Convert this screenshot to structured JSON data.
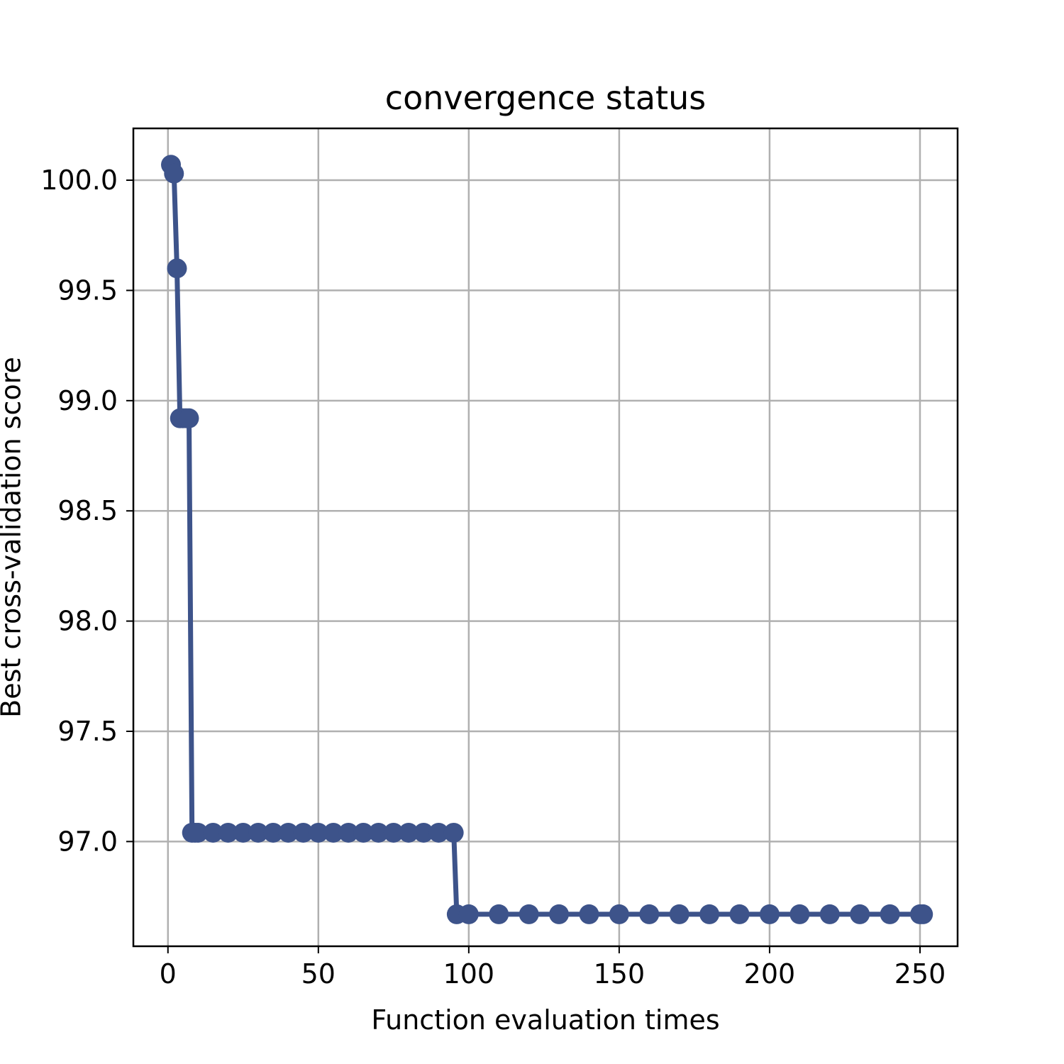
{
  "chart_data": {
    "type": "line",
    "title": "convergence status",
    "xlabel": "Function evaluation times",
    "ylabel": "Best cross-validation score",
    "xlim": [
      -11.5,
      262.5
    ],
    "ylim": [
      96.525,
      100.235
    ],
    "xticks": [
      0,
      50,
      100,
      150,
      200,
      250
    ],
    "yticks": [
      97.0,
      97.5,
      98.0,
      98.5,
      99.0,
      99.5,
      100.0
    ],
    "ytick_decimals": 1,
    "grid": true,
    "legend": "none",
    "colors": {
      "line": "#3d538a",
      "grid": "#b0b0b0",
      "axes": "#000000"
    },
    "markers": true,
    "series": [
      {
        "points": [
          [
            1,
            100.07
          ],
          [
            2,
            100.03
          ],
          [
            3,
            99.6
          ],
          [
            4,
            98.92
          ],
          [
            5,
            98.92
          ],
          [
            6,
            98.92
          ],
          [
            7,
            98.92
          ],
          [
            8,
            97.04
          ],
          [
            9,
            97.04
          ],
          [
            10,
            97.04
          ],
          [
            15,
            97.04
          ],
          [
            20,
            97.04
          ],
          [
            25,
            97.04
          ],
          [
            30,
            97.04
          ],
          [
            35,
            97.04
          ],
          [
            40,
            97.04
          ],
          [
            45,
            97.04
          ],
          [
            50,
            97.04
          ],
          [
            55,
            97.04
          ],
          [
            60,
            97.04
          ],
          [
            65,
            97.04
          ],
          [
            70,
            97.04
          ],
          [
            75,
            97.04
          ],
          [
            80,
            97.04
          ],
          [
            85,
            97.04
          ],
          [
            90,
            97.04
          ],
          [
            95,
            97.04
          ],
          [
            96,
            96.67
          ],
          [
            100,
            96.67
          ],
          [
            110,
            96.67
          ],
          [
            120,
            96.67
          ],
          [
            130,
            96.67
          ],
          [
            140,
            96.67
          ],
          [
            150,
            96.67
          ],
          [
            160,
            96.67
          ],
          [
            170,
            96.67
          ],
          [
            180,
            96.67
          ],
          [
            190,
            96.67
          ],
          [
            200,
            96.67
          ],
          [
            210,
            96.67
          ],
          [
            220,
            96.67
          ],
          [
            230,
            96.67
          ],
          [
            240,
            96.67
          ],
          [
            250,
            96.67
          ],
          [
            251,
            96.67
          ]
        ]
      }
    ]
  }
}
